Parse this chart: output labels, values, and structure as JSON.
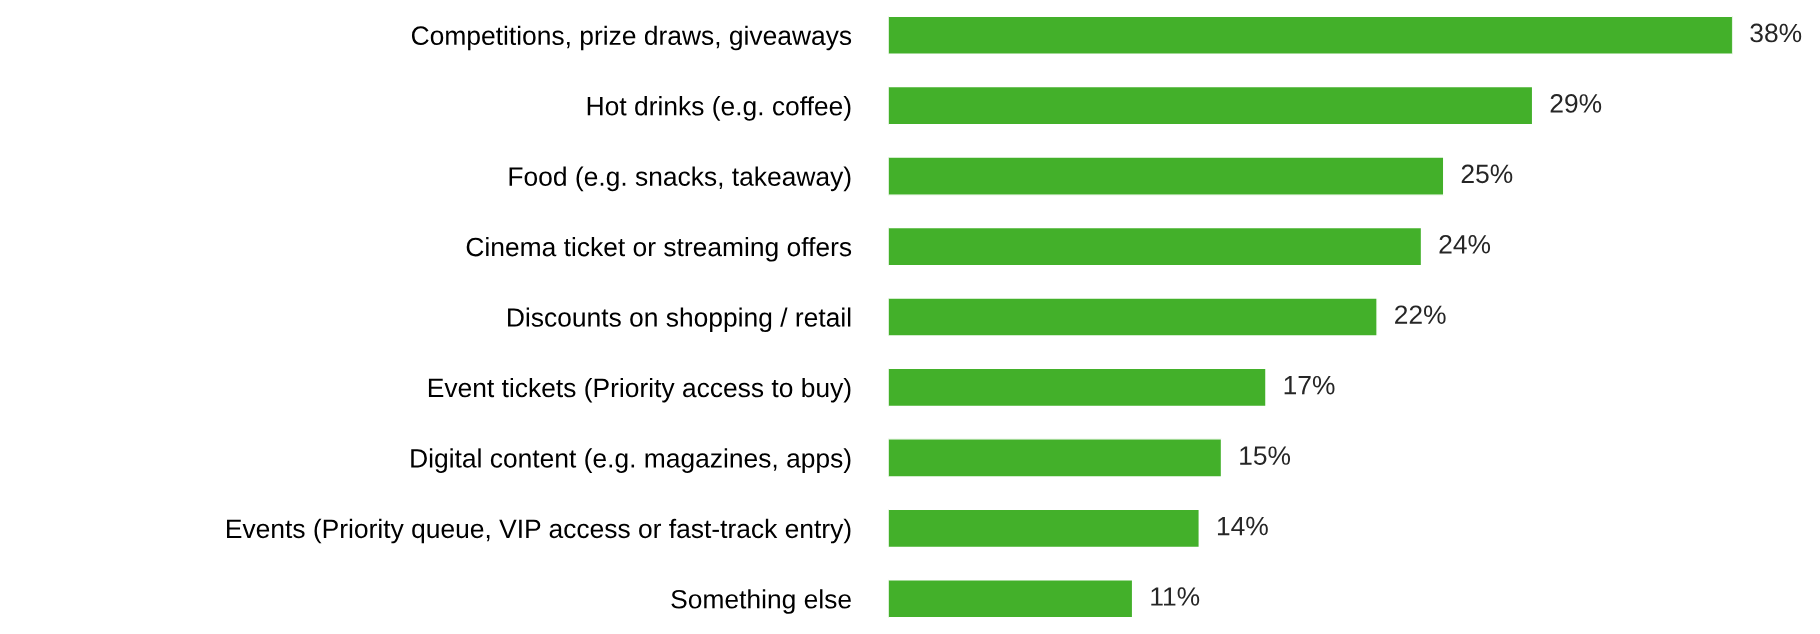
{
  "chart_data": {
    "type": "bar",
    "orientation": "horizontal",
    "categories": [
      "Competitions, prize draws, giveaways",
      "Hot drinks (e.g. coffee)",
      "Food (e.g. snacks, takeaway)",
      "Cinema ticket or streaming offers",
      "Discounts on shopping / retail",
      "Event tickets (Priority access to buy)",
      "Digital content (e.g. magazines, apps)",
      "Events (Priority queue, VIP access or fast-track entry)",
      "Something else"
    ],
    "values": [
      38,
      29,
      25,
      24,
      22,
      17,
      15,
      14,
      11
    ],
    "value_labels": [
      "38%",
      "29%",
      "25%",
      "24%",
      "22%",
      "17%",
      "15%",
      "14%",
      "11%"
    ],
    "color": "#43b02a"
  }
}
